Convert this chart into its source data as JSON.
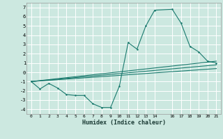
{
  "title": "",
  "xlabel": "Humidex (Indice chaleur)",
  "ylabel": "",
  "background_color": "#cce8e0",
  "line_color": "#1a7a6e",
  "grid_color": "#ffffff",
  "xlim": [
    -0.5,
    21.5
  ],
  "ylim": [
    -4.5,
    7.5
  ],
  "xticks": [
    0,
    1,
    2,
    3,
    4,
    5,
    6,
    7,
    8,
    9,
    10,
    11,
    12,
    13,
    14,
    16,
    17,
    18,
    19,
    20,
    21
  ],
  "yticks": [
    -4,
    -3,
    -2,
    -1,
    0,
    1,
    2,
    3,
    4,
    5,
    6,
    7
  ],
  "series": [
    {
      "x": [
        0,
        1,
        2,
        3,
        4,
        5,
        6,
        7,
        8,
        9,
        10,
        11,
        12,
        13,
        14,
        16,
        17,
        18,
        19,
        20,
        21
      ],
      "y": [
        -1,
        -1.8,
        -1.2,
        -1.7,
        -2.4,
        -2.5,
        -2.5,
        -3.4,
        -3.8,
        -3.8,
        -1.5,
        3.2,
        2.5,
        5.0,
        6.7,
        6.8,
        5.3,
        2.8,
        2.2,
        1.2,
        1.0
      ]
    },
    {
      "x": [
        0,
        21
      ],
      "y": [
        -1.0,
        1.2
      ]
    },
    {
      "x": [
        0,
        21
      ],
      "y": [
        -1.0,
        0.8
      ]
    },
    {
      "x": [
        0,
        21
      ],
      "y": [
        -1.0,
        0.4
      ]
    }
  ]
}
